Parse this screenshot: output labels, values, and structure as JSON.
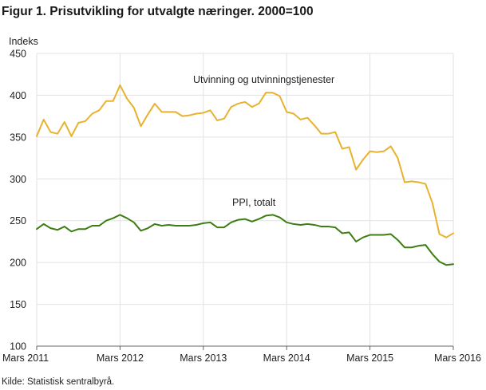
{
  "title": "Figur 1. Prisutvikling for utvalgte næringer. 2000=100",
  "source": "Kilde: Statistisk sentralbyrå.",
  "colors": {
    "mining": "#e8b22e",
    "ppi": "#3d7d14",
    "grid": "#e2e2e2",
    "axis": "#666666"
  },
  "chart_data": {
    "type": "line",
    "ylabel": "Indeks",
    "ylim": [
      100,
      450
    ],
    "yticks": [
      100,
      150,
      200,
      250,
      300,
      350,
      400,
      450
    ],
    "xticks": [
      "Mars 2011",
      "Mars 2012",
      "Mars 2013",
      "Mars 2014",
      "Mars 2015",
      "Mars 2016"
    ],
    "x_start": "2011-03",
    "x_end": "2016-03",
    "grid": true,
    "series": [
      {
        "name": "Utvinning og utvinningstjenester",
        "color": "#e8b22e",
        "values": [
          351,
          371,
          356,
          354,
          368,
          351,
          367,
          369,
          378,
          382,
          393,
          393,
          412,
          396,
          385,
          363,
          377,
          390,
          380,
          380,
          380,
          375,
          376,
          378,
          379,
          382,
          370,
          372,
          386,
          390,
          392,
          386,
          390,
          403,
          403,
          399,
          380,
          378,
          371,
          373,
          364,
          354,
          354,
          356,
          336,
          338,
          311,
          323,
          333,
          332,
          333,
          339,
          325,
          296,
          297,
          296,
          294,
          271,
          234,
          230,
          235
        ]
      },
      {
        "name": "PPI, totalt",
        "color": "#3d7d14",
        "values": [
          240,
          246,
          241,
          239,
          243,
          237,
          240,
          240,
          244,
          244,
          250,
          253,
          257,
          253,
          248,
          238,
          241,
          246,
          244,
          245,
          244,
          244,
          244,
          245,
          247,
          248,
          242,
          242,
          248,
          251,
          252,
          249,
          252,
          256,
          257,
          254,
          248,
          246,
          245,
          246,
          245,
          243,
          243,
          242,
          235,
          236,
          225,
          230,
          233,
          233,
          233,
          234,
          227,
          218,
          218,
          220,
          221,
          210,
          201,
          197,
          198
        ]
      }
    ]
  }
}
